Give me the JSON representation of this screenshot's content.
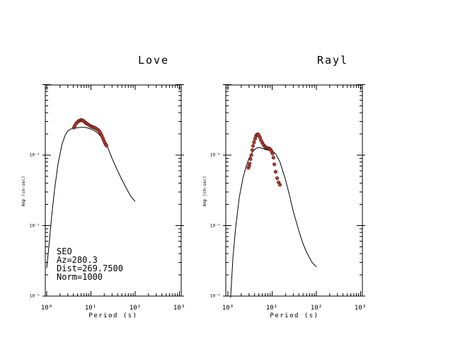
{
  "chart_data": [
    {
      "type": "line",
      "title": "Love",
      "xlabel": "Period (s)",
      "ylabel": "Amp (cm-sec)",
      "xscale": "log",
      "yscale": "log",
      "xlim": [
        1,
        1200
      ],
      "ylim": [
        9.5e-07,
        0.0009
      ],
      "x_tick_labels": [
        "10⁰",
        "10¹",
        "10²",
        "10³"
      ],
      "y_tick_labels": [
        "10⁻⁶",
        "10⁻⁵",
        "10⁻⁴"
      ],
      "annotation": [
        "SEO",
        "Az=280.3",
        "Dist=269.7500",
        "Norm=1000"
      ],
      "series": [
        {
          "kind": "line",
          "x": [
            1.0,
            1.15,
            1.3,
            1.5,
            1.8,
            2.2,
            2.6,
            3.0,
            3.5,
            4.0,
            5.0,
            6.0,
            7.0,
            8.0,
            10.0,
            12.0,
            15.0,
            20.0,
            25.0,
            30.0,
            40.0,
            50.0,
            60.0,
            70.0,
            80.0,
            100.0
          ],
          "y": [
            2.5e-06,
            6e-06,
            1.4e-05,
            3.2e-05,
            7.5e-05,
            0.00014,
            0.00019,
            0.00022,
            0.000235,
            0.00024,
            0.000245,
            0.000248,
            0.000248,
            0.000245,
            0.000235,
            0.000222,
            0.0002,
            0.00016,
            0.00012,
            9e-05,
            6e-05,
            4.5e-05,
            3.6e-05,
            3e-05,
            2.6e-05,
            2.2e-05
          ]
        },
        {
          "kind": "points",
          "color": "#c0392b",
          "x": [
            4.1,
            4.3,
            4.6,
            5.0,
            5.3,
            5.7,
            6.0,
            6.4,
            6.8,
            7.2,
            7.7,
            8.2,
            8.8,
            9.5,
            10.3,
            11.0,
            11.8,
            12.6,
            13.5,
            14.5,
            15.5,
            16.5,
            17.5,
            18.5,
            19.5,
            20.5,
            21.5,
            22.5
          ],
          "y": [
            0.000245,
            0.00026,
            0.00028,
            0.000295,
            0.000305,
            0.00031,
            0.000315,
            0.000312,
            0.000305,
            0.000295,
            0.000285,
            0.000278,
            0.00027,
            0.000262,
            0.000255,
            0.00025,
            0.000246,
            0.000242,
            0.000235,
            0.000228,
            0.000218,
            0.000205,
            0.00019,
            0.000175,
            0.000162,
            0.00015,
            0.000142,
            0.000136
          ]
        }
      ]
    },
    {
      "type": "line",
      "title": "Rayl",
      "xlabel": "Period (s)",
      "ylabel": "Amp (cm-sec)",
      "xscale": "log",
      "yscale": "log",
      "xlim": [
        1,
        1200
      ],
      "ylim": [
        9.5e-07,
        0.0009
      ],
      "x_tick_labels": [
        "10⁰",
        "10¹",
        "10²",
        "10³"
      ],
      "y_tick_labels": [
        "10⁻⁶",
        "10⁻⁵",
        "10⁻⁴"
      ],
      "series": [
        {
          "kind": "line",
          "x": [
            1.15,
            1.3,
            1.5,
            1.8,
            2.2,
            2.6,
            3.0,
            3.5,
            4.0,
            4.5,
            5.0,
            5.5,
            6.0,
            7.0,
            8.0,
            9.0,
            10.0,
            12.0,
            15.0,
            20.0,
            25.0,
            30.0,
            40.0,
            50.0,
            60.0,
            70.0,
            80.0,
            100.0
          ],
          "y": [
            9.5e-07,
            3.5e-06,
            9.5e-06,
            2.5e-05,
            4.8e-05,
            7e-05,
            9e-05,
            0.000108,
            0.00012,
            0.000126,
            0.000128,
            0.000127,
            0.000125,
            0.00012,
            0.000118,
            0.000116,
            0.000114,
            0.000105,
            8e-05,
            4.5e-05,
            2.6e-05,
            1.6e-05,
            8.5e-06,
            5.5e-06,
            4.2e-06,
            3.5e-06,
            3e-06,
            2.6e-06
          ]
        },
        {
          "kind": "points",
          "color": "#c0392b",
          "x": [
            2.9,
            3.0,
            3.1,
            3.25,
            3.4,
            3.55,
            3.7,
            3.9,
            4.1,
            4.3,
            4.5,
            4.75,
            5.0,
            5.3,
            5.6,
            6.0,
            6.4,
            6.8,
            7.2,
            7.7,
            8.2,
            8.7,
            9.2,
            9.7,
            10.2,
            10.7,
            11.2,
            12.0,
            13.0,
            14.0,
            15.0
          ],
          "y": [
            6.6e-05,
            7e-05,
            7.6e-05,
            8.8e-05,
            0.0001,
            0.000118,
            0.000135,
            0.000152,
            0.00017,
            0.000185,
            0.000195,
            0.000198,
            0.000192,
            0.000178,
            0.000162,
            0.00015,
            0.00014,
            0.000133,
            0.000128,
            0.000126,
            0.000125,
            0.000124,
            0.00012,
            0.000113,
            0.000105,
            9.2e-05,
            7.4e-05,
            5.8e-05,
            4.7e-05,
            4.1e-05,
            3.8e-05
          ]
        }
      ]
    }
  ]
}
